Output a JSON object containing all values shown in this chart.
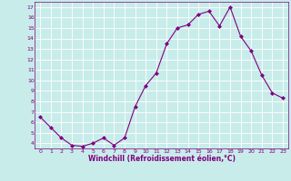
{
  "x": [
    0,
    1,
    2,
    3,
    4,
    5,
    6,
    7,
    8,
    9,
    10,
    11,
    12,
    13,
    14,
    15,
    16,
    17,
    18,
    19,
    20,
    21,
    22,
    23
  ],
  "y": [
    6.5,
    5.5,
    4.5,
    3.8,
    3.7,
    4.0,
    4.5,
    3.8,
    4.5,
    7.5,
    9.5,
    10.7,
    13.5,
    15.0,
    15.3,
    16.3,
    16.6,
    15.2,
    17.0,
    14.2,
    12.8,
    10.5,
    8.8,
    8.3
  ],
  "line_color": "#800080",
  "marker": "D",
  "marker_size": 2,
  "bg_color": "#c8ecea",
  "grid_color": "#ffffff",
  "xlabel": "Windchill (Refroidissement éolien,°C)",
  "xlabel_color": "#800080",
  "tick_color": "#800080",
  "ylim": [
    3.5,
    17.5
  ],
  "xlim": [
    -0.5,
    23.5
  ],
  "yticks": [
    4,
    5,
    6,
    7,
    8,
    9,
    10,
    11,
    12,
    13,
    14,
    15,
    16,
    17
  ],
  "xticks": [
    0,
    1,
    2,
    3,
    4,
    5,
    6,
    7,
    8,
    9,
    10,
    11,
    12,
    13,
    14,
    15,
    16,
    17,
    18,
    19,
    20,
    21,
    22,
    23
  ],
  "xtick_labels": [
    "0",
    "1",
    "2",
    "3",
    "4",
    "5",
    "6",
    "7",
    "8",
    "9",
    "10",
    "11",
    "12",
    "13",
    "14",
    "15",
    "16",
    "17",
    "18",
    "19",
    "20",
    "21",
    "22",
    "23"
  ],
  "ytick_labels": [
    "4",
    "5",
    "6",
    "7",
    "8",
    "9",
    "10",
    "11",
    "12",
    "13",
    "14",
    "15",
    "16",
    "17"
  ],
  "spine_color": "#800080",
  "linewidth": 0.8
}
